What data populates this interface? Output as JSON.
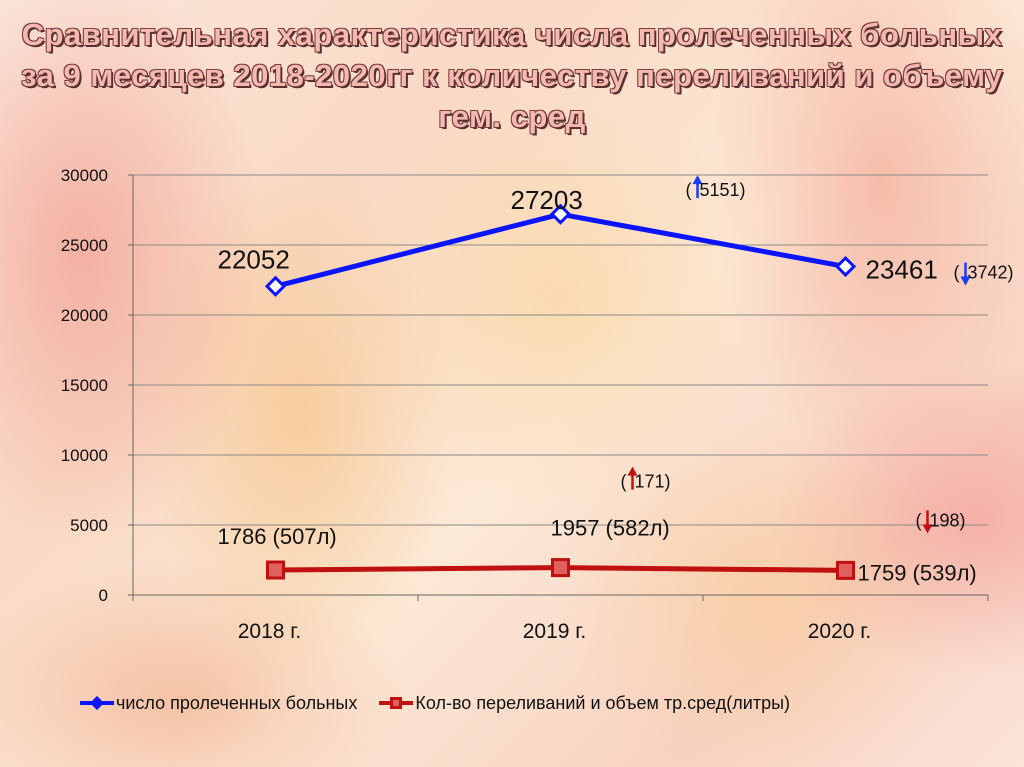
{
  "title": "Сравнительная характеристика числа пролеченных больных за 9 месяцев 2018-2020гг к количеству переливаний и объему гем. сред",
  "chart_data": {
    "type": "line",
    "categories": [
      "2018 г.",
      "2019 г.",
      "2020 г."
    ],
    "ylim": [
      0,
      30000
    ],
    "yticks": [
      "0",
      "5000",
      "10000",
      "15000",
      "20000",
      "25000",
      "30000"
    ],
    "grid": true,
    "legend_position": "bottom",
    "series": [
      {
        "name": "число пролеченных больных",
        "color": "#0a14ff",
        "marker": "diamond",
        "values": [
          22052,
          27203,
          23461
        ],
        "labels": [
          "22052",
          "27203",
          "23461"
        ]
      },
      {
        "name": "Кол-во переливаний и объем тр.сред(литры)",
        "color": "#c01010",
        "marker": "square",
        "values": [
          1786,
          1957,
          1759
        ],
        "labels": [
          "1786 (507л)",
          "1957 (582л)",
          "1759 (539л)"
        ]
      }
    ],
    "annotations": [
      {
        "text": "(",
        "text2": "5151)",
        "arrow": "up",
        "color": "#1a3cff",
        "series": 0,
        "point": 1
      },
      {
        "text": "(",
        "text2": "3742)",
        "arrow": "down",
        "color": "#1a3cff",
        "series": 0,
        "point": 2
      },
      {
        "text": "(",
        "text2": "171)",
        "arrow": "up",
        "color": "#c01010",
        "series": 1,
        "point": 1
      },
      {
        "text": "(",
        "text2": "198)",
        "arrow": "down",
        "color": "#c01010",
        "series": 1,
        "point": 2
      }
    ]
  }
}
